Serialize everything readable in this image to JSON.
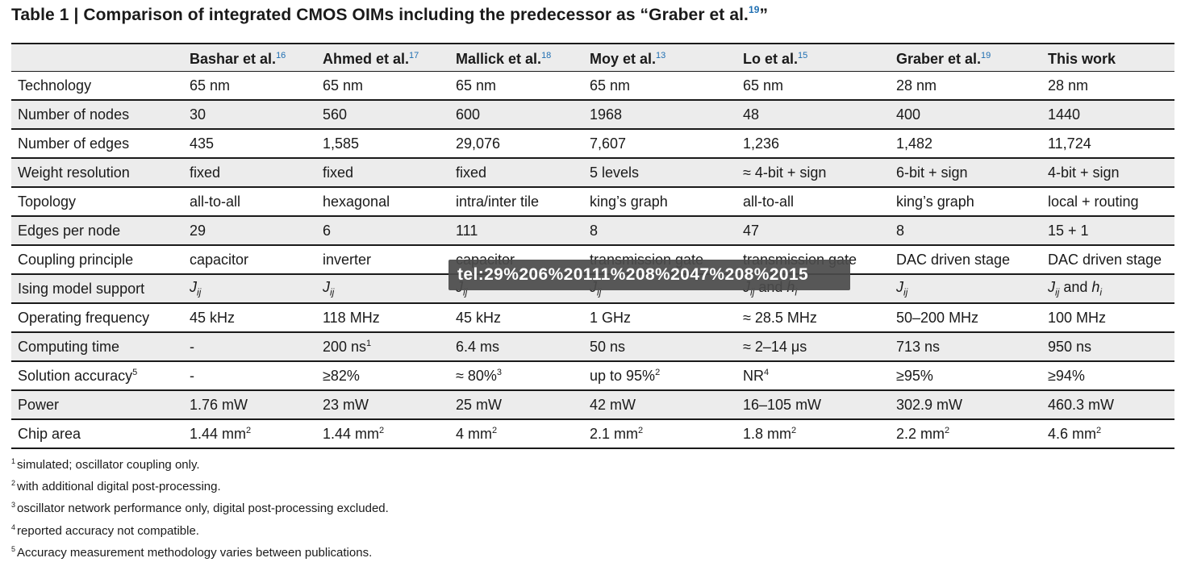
{
  "title": {
    "text": "Table 1 | Comparison of integrated CMOS OIMs including the predecessor as “Graber et al.",
    "ref": "19",
    "close": "”"
  },
  "headers": [
    {
      "label": "",
      "ref": ""
    },
    {
      "label": "Bashar et al.",
      "ref": "16"
    },
    {
      "label": "Ahmed et al.",
      "ref": "17"
    },
    {
      "label": "Mallick et al.",
      "ref": "18"
    },
    {
      "label": "Moy et al.",
      "ref": "13"
    },
    {
      "label": "Lo et al.",
      "ref": "15"
    },
    {
      "label": "Graber et al.",
      "ref": "19"
    },
    {
      "label": "This work",
      "ref": ""
    }
  ],
  "rows": [
    {
      "label": "Technology",
      "cells": [
        "65 nm",
        "65 nm",
        "65 nm",
        "65 nm",
        "65 nm",
        "28 nm",
        "28 nm"
      ]
    },
    {
      "label": "Number of nodes",
      "cells": [
        "30",
        "560",
        "600",
        "1968",
        "48",
        "400",
        "1440"
      ]
    },
    {
      "label": "Number of edges",
      "cells": [
        "435",
        "1,585",
        "29,076",
        "7,607",
        "1,236",
        "1,482",
        "11,724"
      ]
    },
    {
      "label": "Weight resolution",
      "cells": [
        "fixed",
        "fixed",
        "fixed",
        "5 levels",
        "≈ 4-bit + sign",
        "6-bit + sign",
        "4-bit + sign"
      ]
    },
    {
      "label": "Topology",
      "cells": [
        "all-to-all",
        "hexagonal",
        "intra/inter tile",
        "king’s graph",
        "all-to-all",
        "king’s graph",
        "local + routing"
      ]
    },
    {
      "label": "Edges per node",
      "cells": [
        "29",
        "6",
        "111",
        "8",
        "47",
        "8",
        "15 + 1"
      ]
    },
    {
      "label": "Coupling principle",
      "cells": [
        "capacitor",
        "inverter",
        "capacitor",
        "transmission gate",
        "transmission gate",
        "DAC driven stage",
        "DAC driven stage"
      ]
    },
    {
      "label": "Ising model support",
      "cells": [
        "Jij",
        "Jij",
        "Jij",
        "Jij",
        "Jij and hi",
        "Jij",
        "Jij and hi"
      ]
    },
    {
      "label": "Operating frequency",
      "cells": [
        "45 kHz",
        "118 MHz",
        "45 kHz",
        "1 GHz",
        "≈ 28.5 MHz",
        "50–200 MHz",
        "100 MHz"
      ]
    },
    {
      "label": "Computing time",
      "cells": [
        "-",
        "200 ns",
        "6.4 ms",
        "50 ns",
        "≈ 2–14 μs",
        "713 ns",
        "950 ns"
      ],
      "sups": [
        "",
        "1",
        "",
        "",
        "",
        "",
        ""
      ]
    },
    {
      "label": "Solution accuracy",
      "label_sup": "5",
      "cells": [
        "-",
        "≥82%",
        "≈ 80%",
        "up to 95%",
        "NR",
        "≥95%",
        "≥94%"
      ],
      "sups": [
        "",
        "",
        "3",
        "2",
        "4",
        "",
        ""
      ]
    },
    {
      "label": "Power",
      "cells": [
        "1.76 mW",
        "23 mW",
        "25 mW",
        "42 mW",
        "16–105 mW",
        "302.9 mW",
        "460.3 mW"
      ]
    },
    {
      "label": "Chip area",
      "cells": [
        "1.44 mm",
        "1.44 mm",
        "4 mm",
        "2.1 mm",
        "1.8 mm",
        "2.2 mm",
        "4.6 mm"
      ],
      "sups": [
        "2",
        "2",
        "2",
        "2",
        "2",
        "2",
        "2"
      ]
    }
  ],
  "footnotes": [
    {
      "mark": "1",
      "text": "simulated; oscillator coupling only."
    },
    {
      "mark": "2",
      "text": "with additional digital post-processing."
    },
    {
      "mark": "3",
      "text": "oscillator network performance only, digital post-processing excluded."
    },
    {
      "mark": "4",
      "text": "reported accuracy not compatible."
    },
    {
      "mark": "5",
      "text": "Accuracy measurement methodology varies between publications."
    }
  ],
  "tooltip": {
    "text": "tel:29%206%20111%208%2047%208%2015"
  }
}
